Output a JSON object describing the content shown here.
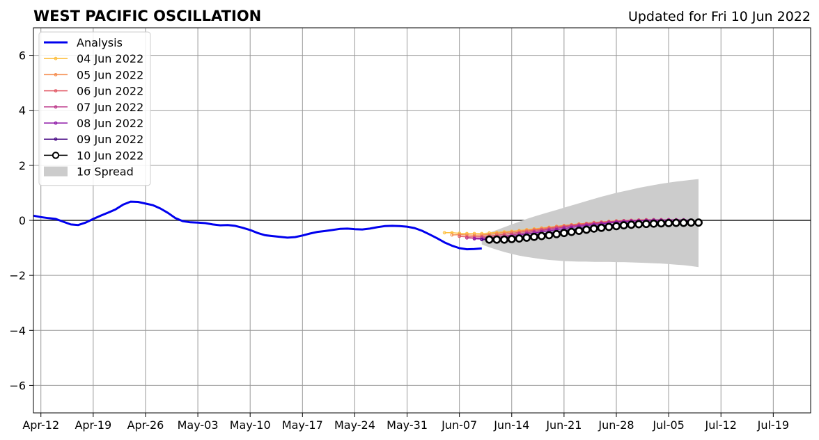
{
  "chart_data": {
    "type": "line",
    "title": "WEST PACIFIC OSCILLATION",
    "subtitle": "Updated for Fri 10 Jun 2022",
    "xlabel": "",
    "ylabel": "",
    "x_start": "2022-04-11",
    "x_end": "2022-07-24",
    "ylim": [
      -7,
      7
    ],
    "yticks": [
      6,
      4,
      2,
      0,
      -2,
      -4,
      -6
    ],
    "ytick_labels": [
      "6",
      "4",
      "2",
      "0",
      "−2",
      "−4",
      "−6"
    ],
    "xtick_dates": [
      "2022-04-12",
      "2022-04-19",
      "2022-04-26",
      "2022-05-03",
      "2022-05-10",
      "2022-05-17",
      "2022-05-24",
      "2022-05-31",
      "2022-06-07",
      "2022-06-14",
      "2022-06-21",
      "2022-06-28",
      "2022-07-05",
      "2022-07-12",
      "2022-07-19"
    ],
    "xtick_labels": [
      "Apr-12",
      "Apr-19",
      "Apr-26",
      "May-03",
      "May-10",
      "May-17",
      "May-24",
      "May-31",
      "Jun-07",
      "Jun-14",
      "Jun-21",
      "Jun-28",
      "Jul-05",
      "Jul-12",
      "Jul-19"
    ],
    "grid": true,
    "legend_position": "top-left",
    "colors": {
      "analysis": "#0000ee",
      "jun04": "#fdbf3f",
      "jun05": "#f58d4f",
      "jun06": "#e25a66",
      "jun07": "#bd3a8b",
      "jun08": "#8e1aa8",
      "jun09": "#4a0c86",
      "jun10": "#000000",
      "spread": "#cccccc",
      "grid": "#999999",
      "zero_line": "#555555"
    },
    "series": [
      {
        "name": "Analysis",
        "kind": "analysis",
        "start_date": "2022-04-11",
        "values": [
          0.17,
          0.12,
          0.08,
          0.05,
          -0.05,
          -0.15,
          -0.17,
          -0.08,
          0.05,
          0.17,
          0.28,
          0.4,
          0.57,
          0.68,
          0.67,
          0.61,
          0.55,
          0.43,
          0.27,
          0.08,
          -0.03,
          -0.07,
          -0.08,
          -0.1,
          -0.15,
          -0.18,
          -0.17,
          -0.2,
          -0.27,
          -0.35,
          -0.46,
          -0.54,
          -0.57,
          -0.6,
          -0.63,
          -0.61,
          -0.55,
          -0.48,
          -0.42,
          -0.39,
          -0.35,
          -0.31,
          -0.3,
          -0.32,
          -0.33,
          -0.3,
          -0.25,
          -0.21,
          -0.2,
          -0.21,
          -0.23,
          -0.28,
          -0.38,
          -0.51,
          -0.65,
          -0.8,
          -0.92,
          -1.01,
          -1.05,
          -1.04,
          -1.02
        ]
      },
      {
        "name": "04 Jun 2022",
        "kind": "forecast",
        "color_key": "jun04",
        "start_date": "2022-06-05",
        "values": [
          -0.45,
          -0.45,
          -0.47,
          -0.48,
          -0.48,
          -0.48,
          -0.46,
          -0.44,
          -0.42,
          -0.4,
          -0.37,
          -0.34,
          -0.31,
          -0.28,
          -0.25,
          -0.22,
          -0.19,
          -0.16,
          -0.13,
          -0.11,
          -0.08,
          -0.06,
          -0.04,
          -0.02,
          -0.01,
          0.0,
          0.01,
          0.02,
          0.02,
          0.02,
          0.02
        ]
      },
      {
        "name": "05 Jun 2022",
        "kind": "forecast",
        "color_key": "jun05",
        "start_date": "2022-06-06",
        "values": [
          -0.53,
          -0.52,
          -0.53,
          -0.54,
          -0.53,
          -0.51,
          -0.48,
          -0.45,
          -0.42,
          -0.39,
          -0.36,
          -0.33,
          -0.29,
          -0.26,
          -0.22,
          -0.19,
          -0.16,
          -0.13,
          -0.11,
          -0.08,
          -0.06,
          -0.04,
          -0.02,
          -0.01,
          0.0,
          0.01,
          0.02,
          0.02,
          0.02,
          0.02
        ]
      },
      {
        "name": "06 Jun 2022",
        "kind": "forecast",
        "color_key": "jun06",
        "start_date": "2022-06-07",
        "values": [
          -0.58,
          -0.6,
          -0.6,
          -0.59,
          -0.57,
          -0.54,
          -0.51,
          -0.47,
          -0.44,
          -0.4,
          -0.36,
          -0.33,
          -0.29,
          -0.25,
          -0.22,
          -0.18,
          -0.15,
          -0.12,
          -0.09,
          -0.07,
          -0.05,
          -0.03,
          -0.01,
          0.0,
          0.01,
          0.02,
          0.02,
          0.02,
          0.02,
          0.02
        ]
      },
      {
        "name": "07 Jun 2022",
        "kind": "forecast",
        "color_key": "jun07",
        "start_date": "2022-06-08",
        "values": [
          -0.64,
          -0.65,
          -0.64,
          -0.62,
          -0.6,
          -0.57,
          -0.53,
          -0.49,
          -0.45,
          -0.41,
          -0.37,
          -0.33,
          -0.29,
          -0.25,
          -0.21,
          -0.18,
          -0.15,
          -0.12,
          -0.09,
          -0.06,
          -0.04,
          -0.02,
          -0.01,
          0.0,
          0.01,
          0.02,
          0.02,
          0.02,
          0.02,
          0.02
        ]
      },
      {
        "name": "08 Jun 2022",
        "kind": "forecast",
        "color_key": "jun08",
        "start_date": "2022-06-09",
        "values": [
          -0.67,
          -0.68,
          -0.67,
          -0.65,
          -0.62,
          -0.58,
          -0.54,
          -0.5,
          -0.46,
          -0.42,
          -0.38,
          -0.34,
          -0.3,
          -0.26,
          -0.22,
          -0.19,
          -0.16,
          -0.13,
          -0.1,
          -0.07,
          -0.05,
          -0.03,
          -0.02,
          -0.01,
          0.0,
          0.0,
          0.01,
          0.01,
          0.01,
          0.01
        ]
      },
      {
        "name": "09 Jun 2022",
        "kind": "forecast",
        "color_key": "jun09",
        "start_date": "2022-06-10",
        "values": [
          -0.7,
          -0.7,
          -0.69,
          -0.67,
          -0.64,
          -0.61,
          -0.57,
          -0.53,
          -0.49,
          -0.45,
          -0.41,
          -0.37,
          -0.33,
          -0.29,
          -0.26,
          -0.22,
          -0.19,
          -0.16,
          -0.14,
          -0.12,
          -0.1,
          -0.08,
          -0.07,
          -0.06,
          -0.05,
          -0.05,
          -0.04,
          -0.04,
          -0.04,
          -0.04
        ]
      },
      {
        "name": "10 Jun 2022",
        "kind": "forecast_main",
        "color_key": "jun10",
        "start_date": "2022-06-11",
        "values": [
          -0.7,
          -0.7,
          -0.7,
          -0.68,
          -0.66,
          -0.63,
          -0.6,
          -0.57,
          -0.54,
          -0.5,
          -0.46,
          -0.42,
          -0.38,
          -0.34,
          -0.3,
          -0.27,
          -0.24,
          -0.21,
          -0.18,
          -0.16,
          -0.14,
          -0.13,
          -0.12,
          -0.11,
          -0.1,
          -0.09,
          -0.09,
          -0.08,
          -0.08
        ]
      }
    ],
    "spread": {
      "name": "1σ Spread",
      "start_date": "2022-06-10",
      "upper": [
        -0.55,
        -0.45,
        -0.35,
        -0.25,
        -0.15,
        -0.05,
        0.05,
        0.14,
        0.22,
        0.3,
        0.38,
        0.46,
        0.54,
        0.62,
        0.7,
        0.78,
        0.86,
        0.93,
        1.0,
        1.06,
        1.12,
        1.18,
        1.23,
        1.28,
        1.33,
        1.37,
        1.41,
        1.44,
        1.47,
        1.5
      ],
      "lower": [
        -0.88,
        -0.98,
        -1.07,
        -1.15,
        -1.22,
        -1.28,
        -1.33,
        -1.37,
        -1.41,
        -1.44,
        -1.46,
        -1.48,
        -1.49,
        -1.5,
        -1.5,
        -1.51,
        -1.51,
        -1.51,
        -1.52,
        -1.52,
        -1.53,
        -1.54,
        -1.55,
        -1.56,
        -1.57,
        -1.59,
        -1.61,
        -1.63,
        -1.66,
        -1.7
      ]
    }
  }
}
